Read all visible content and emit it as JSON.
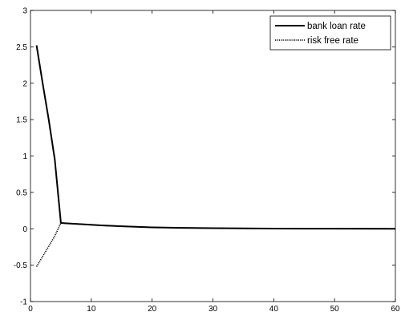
{
  "chart_data": {
    "type": "line",
    "title": "",
    "xlabel": "",
    "ylabel": "",
    "xlim": [
      0,
      60
    ],
    "ylim": [
      -1,
      3
    ],
    "xticks": [
      0,
      10,
      20,
      30,
      40,
      50,
      60
    ],
    "yticks": [
      -1,
      -0.5,
      0,
      0.5,
      1,
      1.5,
      2,
      2.5,
      3
    ],
    "grid": false,
    "legend_position": "top-right",
    "series": [
      {
        "name": "bank loan rate",
        "style": "solid",
        "color": "#000000",
        "x": [
          1,
          2,
          3,
          4,
          5,
          6,
          8,
          10,
          12,
          15,
          20,
          25,
          30,
          40,
          50,
          60
        ],
        "y": [
          2.52,
          2.0,
          1.5,
          0.95,
          0.08,
          0.075,
          0.065,
          0.055,
          0.045,
          0.035,
          0.02,
          0.013,
          0.008,
          0.003,
          0.001,
          0.0
        ]
      },
      {
        "name": "risk free rate",
        "style": "dotted",
        "color": "#000000",
        "x": [
          1,
          2,
          3,
          4,
          5,
          6,
          8,
          10,
          12,
          15,
          20,
          25,
          30,
          40,
          50,
          60
        ],
        "y": [
          -0.52,
          -0.38,
          -0.24,
          -0.1,
          0.08,
          0.075,
          0.065,
          0.055,
          0.045,
          0.035,
          0.02,
          0.013,
          0.008,
          0.003,
          0.001,
          0.0
        ]
      }
    ]
  }
}
